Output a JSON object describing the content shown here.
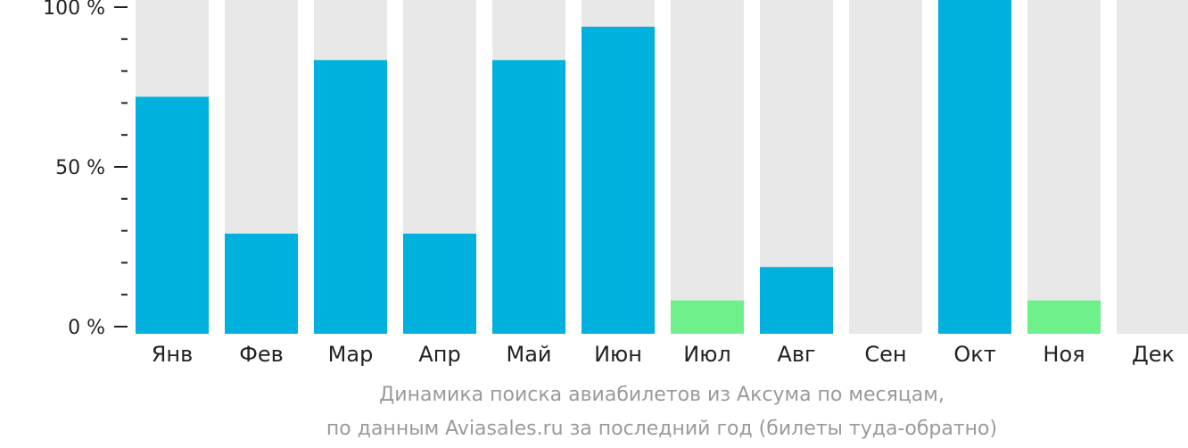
{
  "chart_data": {
    "type": "bar",
    "categories": [
      "Янв",
      "Фев",
      "Мар",
      "Апр",
      "Май",
      "Июн",
      "Июл",
      "Авг",
      "Сен",
      "Окт",
      "Ноя",
      "Дек"
    ],
    "values": [
      71,
      30,
      82,
      30,
      82,
      92,
      10,
      20,
      0,
      100,
      10,
      0
    ],
    "value_colors": [
      "#00b0dd",
      "#00b0dd",
      "#00b0dd",
      "#00b0dd",
      "#00b0dd",
      "#00b0dd",
      "#6ef08a",
      "#00b0dd",
      "#00b0dd",
      "#00b0dd",
      "#6ef08a",
      "#00b0dd"
    ],
    "y_ticks": [
      "0 %",
      "50 %",
      "100 %"
    ],
    "y_tick_values": [
      0,
      50,
      100
    ],
    "ylim": [
      0,
      100
    ],
    "track_color": "#e8e8e8",
    "title": "",
    "xlabel": "",
    "ylabel": ""
  },
  "caption": {
    "line1": "Динамика поиска авиабилетов из Аксума по месяцам,",
    "line2": "по данным Aviasales.ru за последний год (билеты туда-обратно)"
  }
}
